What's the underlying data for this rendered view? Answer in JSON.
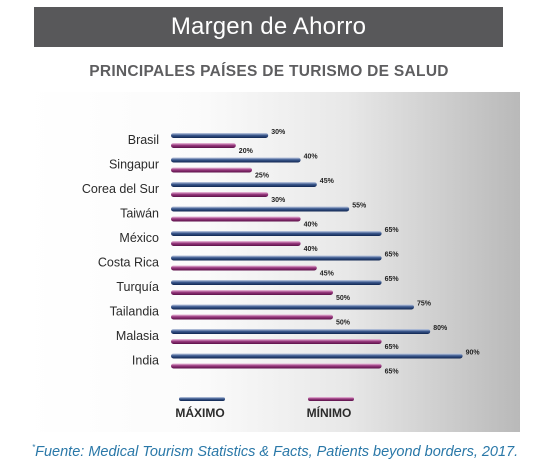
{
  "header": {
    "title": "Margen de Ahorro"
  },
  "chart_data": {
    "type": "bar",
    "orientation": "horizontal",
    "title": "PRINCIPALES PAÍSES DE TURISMO DE SALUD",
    "categories": [
      "Brasil",
      "Singapur",
      "Corea del Sur",
      "Taiwán",
      "México",
      "Costa Rica",
      "Turquía",
      "Tailandia",
      "Malasia",
      "India"
    ],
    "series": [
      {
        "name": "MÁXIMO",
        "color": "#1f3b6e",
        "values": [
          30,
          40,
          45,
          55,
          65,
          65,
          65,
          75,
          80,
          90
        ],
        "labels": [
          "30%",
          "40%",
          "45%",
          "55%",
          "65%",
          "65%",
          "65%",
          "75%",
          "80%",
          "90%"
        ]
      },
      {
        "name": "MÍNIMO",
        "color": "#8a1f6e",
        "values": [
          20,
          25,
          30,
          40,
          40,
          45,
          50,
          50,
          65,
          65
        ],
        "labels": [
          "20%",
          "25%",
          "30%",
          "40%",
          "40%",
          "45%",
          "50%",
          "50%",
          "65%",
          "65%"
        ]
      }
    ],
    "value_unit": "%",
    "xlim": [
      0,
      100
    ],
    "legend_position": "bottom",
    "grid": false
  },
  "footnote": {
    "marker": "*",
    "text": "Fuente: Medical Tourism Statistics & Facts, Patients beyond borders, 2017."
  }
}
